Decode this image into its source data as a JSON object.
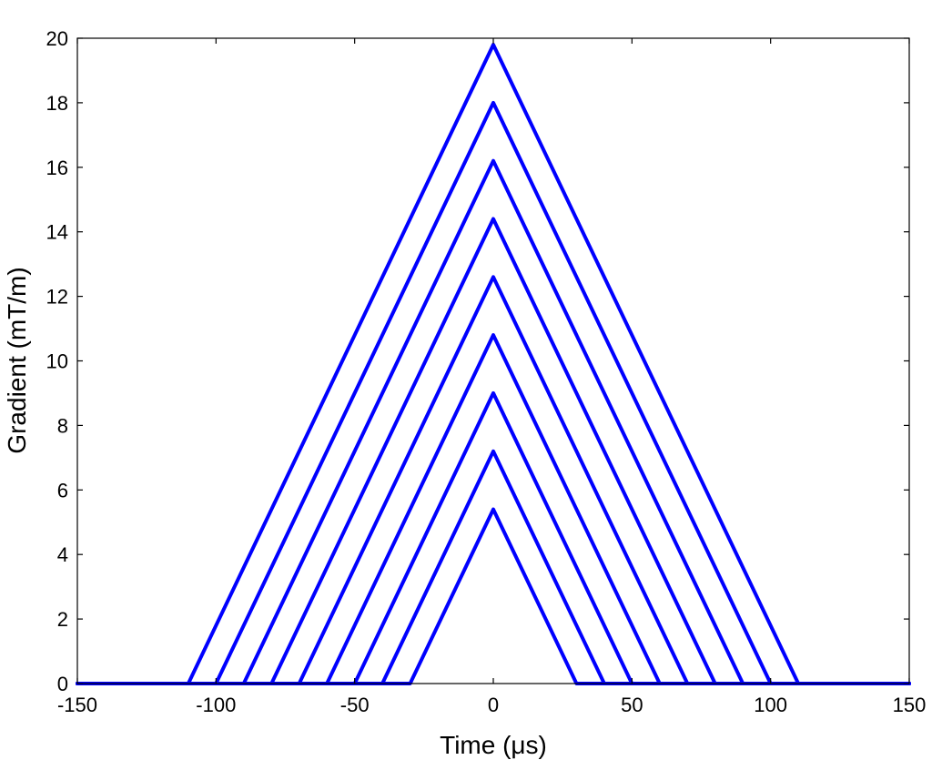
{
  "chart_data": {
    "type": "line",
    "title": "",
    "xlabel": "Time (μs)",
    "ylabel": "Gradient (mT/m)",
    "xlim": [
      -150,
      150
    ],
    "ylim": [
      0,
      20
    ],
    "x_ticks": [
      "-150",
      "-100",
      "-50",
      "0",
      "50",
      "100",
      "150"
    ],
    "y_ticks": [
      "0",
      "2",
      "4",
      "6",
      "8",
      "10",
      "12",
      "14",
      "16",
      "18",
      "20"
    ],
    "grid": false,
    "legend": "none",
    "line_color": "#0000ff",
    "series": [
      {
        "x": [
          -150,
          -110,
          0,
          110,
          150
        ],
        "y": [
          0,
          0,
          19.8,
          0,
          0
        ]
      },
      {
        "x": [
          -150,
          -100,
          0,
          100,
          150
        ],
        "y": [
          0,
          0,
          18.0,
          0,
          0
        ]
      },
      {
        "x": [
          -150,
          -90,
          0,
          90,
          150
        ],
        "y": [
          0,
          0,
          16.2,
          0,
          0
        ]
      },
      {
        "x": [
          -150,
          -80,
          0,
          80,
          150
        ],
        "y": [
          0,
          0,
          14.4,
          0,
          0
        ]
      },
      {
        "x": [
          -150,
          -70,
          0,
          70,
          150
        ],
        "y": [
          0,
          0,
          12.6,
          0,
          0
        ]
      },
      {
        "x": [
          -150,
          -60,
          0,
          60,
          150
        ],
        "y": [
          0,
          0,
          10.8,
          0,
          0
        ]
      },
      {
        "x": [
          -150,
          -50,
          0,
          50,
          150
        ],
        "y": [
          0,
          0,
          9.0,
          0,
          0
        ]
      },
      {
        "x": [
          -150,
          -40,
          0,
          40,
          150
        ],
        "y": [
          0,
          0,
          7.2,
          0,
          0
        ]
      },
      {
        "x": [
          -150,
          -30,
          0,
          30,
          150
        ],
        "y": [
          0,
          0,
          5.4,
          0,
          0
        ]
      }
    ]
  }
}
